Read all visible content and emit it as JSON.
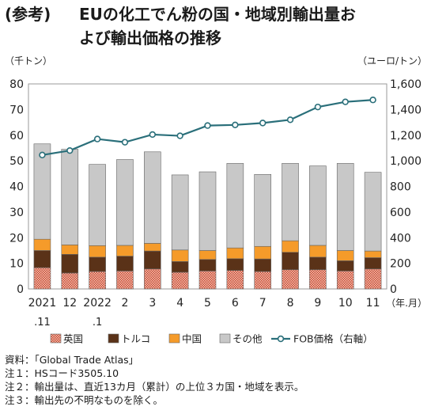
{
  "figure": {
    "prefix": "(参考)",
    "title_line1": "EUの化工でん粉の国・地域別輸出量お",
    "title_line2": "よび輸出価格の推移"
  },
  "chart_data": {
    "type": "bar",
    "stacked": true,
    "x_labels_top": [
      "2021",
      "12",
      "2022",
      "2",
      "3",
      "4",
      "5",
      "6",
      "7",
      "8",
      "9",
      "10",
      "11"
    ],
    "x_labels_bottom": [
      ".11",
      "",
      ".1",
      "",
      "",
      "",
      "",
      "",
      "",
      "",
      "",
      "",
      ""
    ],
    "x_unit": "（年.月）",
    "left_axis": {
      "unit": "（千トン）",
      "min": 0,
      "max": 80,
      "ticks": [
        "0",
        "10",
        "20",
        "30",
        "40",
        "50",
        "60",
        "70",
        "80"
      ]
    },
    "right_axis": {
      "unit": "（ユーロ/トン）",
      "min": 0,
      "max": 1600,
      "ticks": [
        "0",
        "200",
        "400",
        "600",
        "800",
        "1,000",
        "1,200",
        "1,400",
        "1,600"
      ]
    },
    "series": [
      {
        "name": "英国",
        "values": [
          8.3,
          6.2,
          6.8,
          7.0,
          7.8,
          6.5,
          7.0,
          7.2,
          6.8,
          7.5,
          7.5,
          7.0,
          7.8
        ],
        "color": "#d9705a"
      },
      {
        "name": "トルコ",
        "values": [
          6.7,
          7.3,
          5.6,
          5.8,
          7.0,
          4.2,
          4.5,
          4.6,
          4.9,
          6.8,
          4.9,
          4.0,
          4.4
        ],
        "color": "#5a3218"
      },
      {
        "name": "中国",
        "values": [
          4.4,
          3.7,
          4.5,
          4.2,
          3.0,
          4.5,
          3.5,
          4.2,
          4.9,
          4.5,
          4.6,
          4.0,
          2.6
        ],
        "color": "#f59b2a"
      },
      {
        "name": "その他",
        "values": [
          37.2,
          37.3,
          31.7,
          33.5,
          35.7,
          29.3,
          30.7,
          33.0,
          28.1,
          30.2,
          31.0,
          34.0,
          30.7
        ],
        "color": "#c8c8c8"
      }
    ],
    "line": {
      "name": "FOB価格（右軸）",
      "values": [
        1045,
        1080,
        1170,
        1145,
        1205,
        1195,
        1275,
        1280,
        1295,
        1320,
        1420,
        1460,
        1475
      ],
      "color": "#2a6f7a"
    },
    "grid": false,
    "legend_position": "bottom"
  },
  "notes": [
    "資料：「Global Trade Atlas」",
    "注１：HSコード3505.10",
    "注２：輸出量は、直近13カ月（累計）の上位３カ国・地域を表示。",
    "注３：輸出先の不明なものを除く。"
  ]
}
